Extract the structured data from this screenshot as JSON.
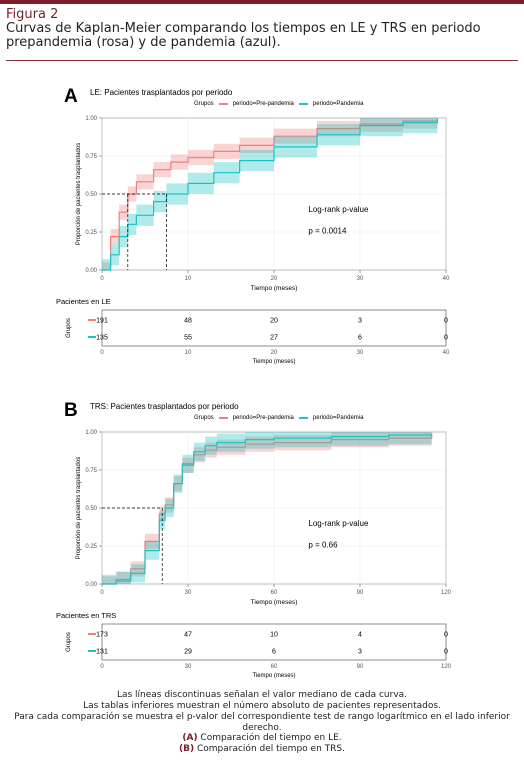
{
  "figure": {
    "label": "Figura 2",
    "caption": "Curvas de Kaplan-Meier comparando los tiempos en LE y TRS en periodo prepandemia (rosa) y de pandemia (azul)."
  },
  "colors": {
    "pre": "#f08080",
    "pan": "#1ec3c3",
    "accent": "#7a1c2a"
  },
  "legend": {
    "title": "Grupos",
    "pre": "periodo=Pre-pandemia",
    "pan": "periodo=Pandemia"
  },
  "chart_data": [
    {
      "type": "line",
      "panel": "A",
      "title": "LE: Pacientes trasplantados por periodo",
      "xlabel": "Tiempo (meses)",
      "ylabel": "Proporción de pacientes trasplantados",
      "xlim": [
        0,
        40
      ],
      "ylim": [
        0,
        1
      ],
      "xticks": [
        0,
        10,
        20,
        30,
        40
      ],
      "yticks": [
        "0.00",
        "0.25",
        "0.50",
        "0.75",
        "1.00"
      ],
      "annotation_title": "Log-rank p-value",
      "annotation_value": "p = 0.0014",
      "medians": [
        3,
        7.5
      ],
      "series": [
        {
          "name": "periodo=Pre-pandemia",
          "x": [
            0,
            1,
            2,
            3,
            4,
            6,
            8,
            10,
            13,
            16,
            20,
            25,
            30,
            35,
            39
          ],
          "y": [
            0,
            0.22,
            0.38,
            0.5,
            0.58,
            0.66,
            0.71,
            0.74,
            0.78,
            0.82,
            0.88,
            0.93,
            0.96,
            0.98,
            1.0
          ],
          "band": 0.05
        },
        {
          "name": "periodo=Pandemia",
          "x": [
            0,
            1,
            2,
            3,
            4,
            6,
            7.5,
            10,
            13,
            16,
            20,
            25,
            30,
            35,
            39
          ],
          "y": [
            0,
            0.1,
            0.22,
            0.3,
            0.36,
            0.45,
            0.5,
            0.57,
            0.64,
            0.72,
            0.81,
            0.89,
            0.95,
            0.97,
            0.99
          ],
          "band": 0.07
        }
      ],
      "risk_table": {
        "title": "Pacientes en LE",
        "xticks": [
          0,
          10,
          20,
          30,
          40
        ],
        "pre": [
          "191",
          "48",
          "20",
          "3",
          "0"
        ],
        "pan": [
          "135",
          "55",
          "27",
          "6",
          "0"
        ]
      }
    },
    {
      "type": "line",
      "panel": "B",
      "title": "TRS: Pacientes trasplantados por periodo",
      "xlabel": "Tiempo (meses)",
      "ylabel": "Proporción de pacientes trasplantados",
      "xlim": [
        0,
        120
      ],
      "ylim": [
        0,
        1
      ],
      "xticks": [
        0,
        30,
        60,
        90,
        120
      ],
      "yticks": [
        "0.00",
        "0.25",
        "0.50",
        "0.75",
        "1.00"
      ],
      "annotation_title": "Log-rank p-value",
      "annotation_value": "p = 0.66",
      "medians": [
        21
      ],
      "series": [
        {
          "name": "periodo=Pre-pandemia",
          "x": [
            0,
            5,
            10,
            15,
            20,
            22,
            25,
            28,
            32,
            36,
            40,
            50,
            60,
            80,
            100,
            115
          ],
          "y": [
            0,
            0.03,
            0.1,
            0.28,
            0.46,
            0.52,
            0.66,
            0.78,
            0.85,
            0.88,
            0.9,
            0.92,
            0.93,
            0.95,
            0.96,
            0.98
          ],
          "band": 0.05
        },
        {
          "name": "periodo=Pandemia",
          "x": [
            0,
            5,
            10,
            15,
            20,
            22,
            25,
            28,
            32,
            36,
            40,
            50,
            60,
            80,
            100,
            115
          ],
          "y": [
            0,
            0.02,
            0.07,
            0.22,
            0.42,
            0.5,
            0.66,
            0.79,
            0.87,
            0.91,
            0.93,
            0.95,
            0.96,
            0.97,
            0.98,
            0.99
          ],
          "band": 0.06
        }
      ],
      "risk_table": {
        "title": "Pacientes en TRS",
        "xticks": [
          0,
          30,
          60,
          90,
          120
        ],
        "pre": [
          "173",
          "47",
          "10",
          "4",
          "0"
        ],
        "pan": [
          "131",
          "29",
          "6",
          "3",
          "0"
        ]
      }
    }
  ],
  "footer": {
    "line1": "Las líneas discontinuas señalan el valor mediano de cada curva.",
    "line2": "Las tablas inferiores muestran el número absoluto de pacientes representados.",
    "line3": "Para cada comparación se muestra el p-valor del correspondiente test de rango logarítmico en el lado inferior derecho.",
    "a_tag": "(A)",
    "a_text": " Comparación del tiempo en LE.",
    "b_tag": "(B)",
    "b_text": " Comparación del tiempo en TRS."
  }
}
